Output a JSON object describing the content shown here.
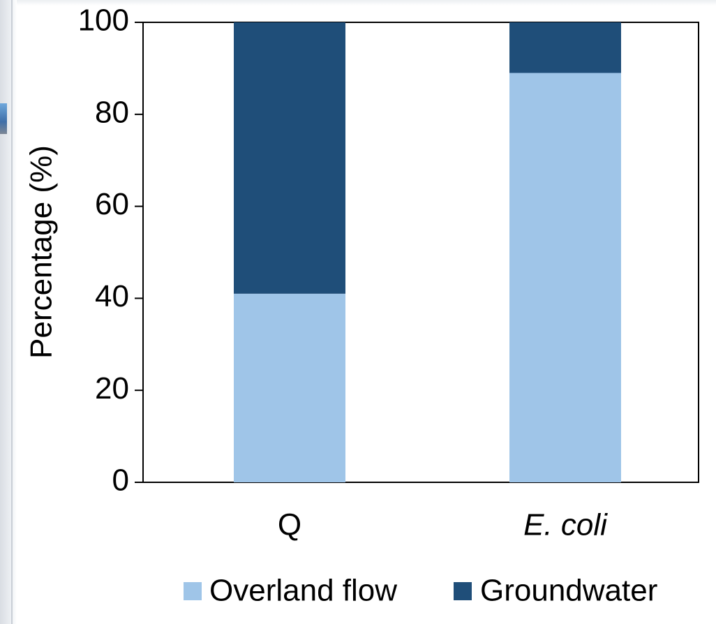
{
  "chart_data": {
    "type": "bar",
    "stacked": true,
    "categories": [
      "Q",
      "E. coli"
    ],
    "category_italic": [
      false,
      true
    ],
    "series": [
      {
        "name": "Overland flow",
        "values": [
          41,
          89
        ],
        "color": "#9fc5e8"
      },
      {
        "name": "Groundwater",
        "values": [
          59,
          11
        ],
        "color": "#1f4e79"
      }
    ],
    "xlabel": "",
    "ylabel": "Percentage (%)",
    "ylim": [
      0,
      100
    ],
    "yticks": [
      0,
      20,
      40,
      60,
      80,
      100
    ],
    "ytick_labels": [
      "0",
      "20",
      "40",
      "60",
      "80",
      "100"
    ],
    "grid": false,
    "legend_position": "bottom"
  }
}
